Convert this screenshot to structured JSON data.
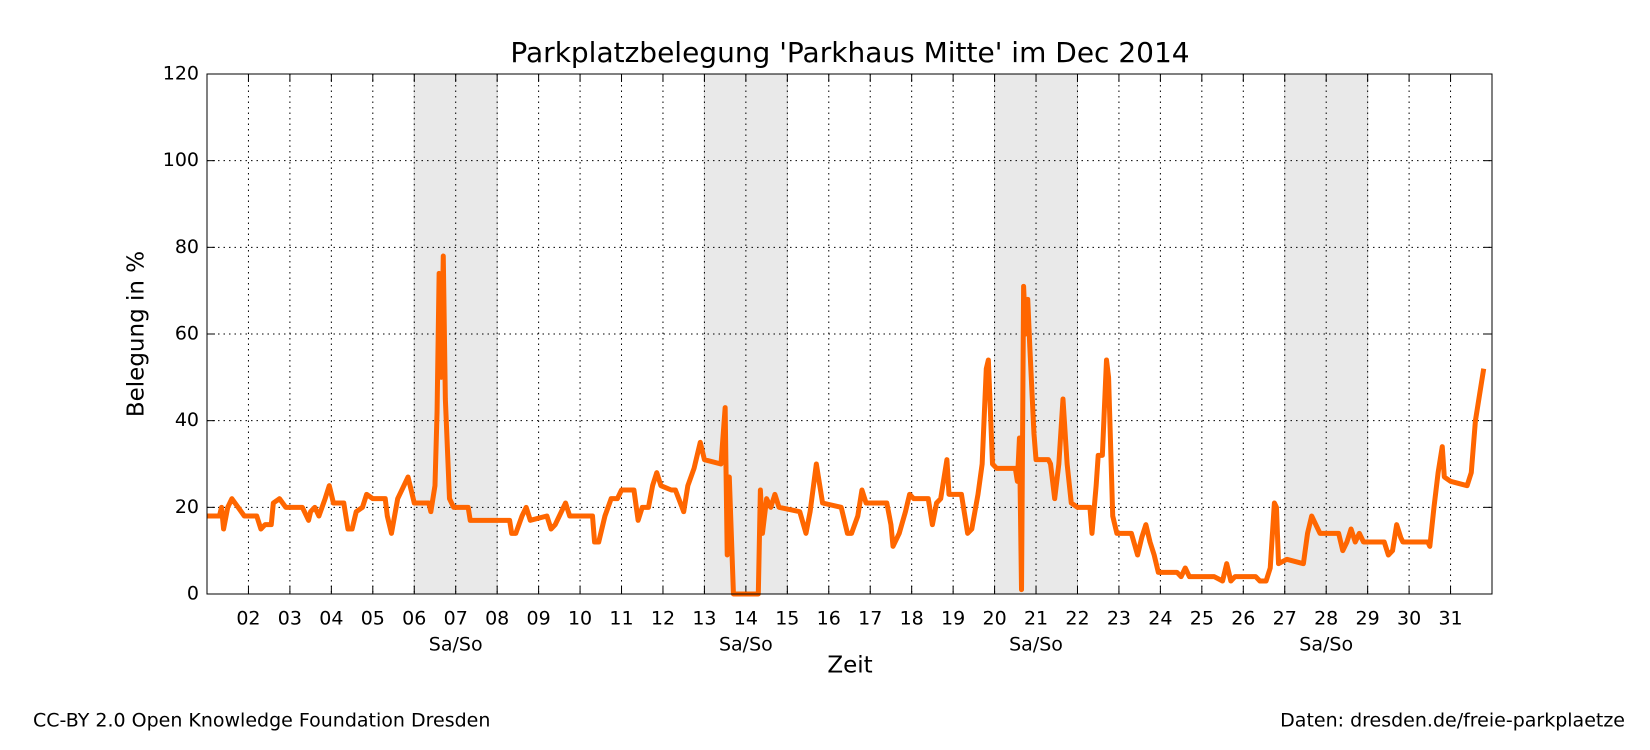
{
  "chart_data": {
    "type": "line",
    "title": "Parkplatzbelegung 'Parkhaus Mitte' im Dec 2014",
    "xlabel": "Zeit",
    "ylabel": "Belegung in %",
    "x": [
      1.0,
      1.3,
      1.35,
      1.4,
      1.5,
      1.6,
      1.75,
      1.9,
      2.2,
      2.3,
      2.4,
      2.55,
      2.6,
      2.75,
      2.9,
      3.3,
      3.45,
      3.5,
      3.6,
      3.7,
      3.85,
      3.95,
      4.05,
      4.3,
      4.4,
      4.5,
      4.6,
      4.75,
      4.85,
      5.0,
      5.3,
      5.35,
      5.45,
      5.6,
      5.75,
      5.85,
      6.0,
      6.35,
      6.4,
      6.5,
      6.55,
      6.6,
      6.65,
      6.7,
      6.75,
      6.85,
      6.95,
      7.3,
      7.35,
      8.3,
      8.35,
      8.45,
      8.6,
      8.7,
      8.8,
      9.2,
      9.3,
      9.4,
      9.5,
      9.65,
      9.75,
      10.3,
      10.35,
      10.45,
      10.6,
      10.75,
      10.9,
      11.0,
      11.3,
      11.4,
      11.5,
      11.65,
      11.75,
      11.85,
      11.95,
      12.2,
      12.3,
      12.5,
      12.6,
      12.75,
      12.85,
      12.9,
      13.0,
      13.4,
      13.5,
      13.55,
      13.6,
      13.7,
      14.3,
      14.35,
      14.4,
      14.5,
      14.6,
      14.7,
      14.8,
      15.3,
      15.45,
      15.55,
      15.7,
      15.85,
      16.3,
      16.45,
      16.55,
      16.7,
      16.8,
      16.9,
      17.4,
      17.5,
      17.55,
      17.7,
      17.85,
      17.95,
      18.05,
      18.4,
      18.5,
      18.6,
      18.7,
      18.8,
      18.85,
      18.9,
      19.2,
      19.35,
      19.45,
      19.6,
      19.7,
      19.8,
      19.85,
      19.95,
      20.05,
      20.5,
      20.55,
      20.6,
      20.65,
      20.7,
      20.75,
      20.8,
      20.85,
      20.95,
      21.0,
      21.3,
      21.35,
      21.45,
      21.55,
      21.65,
      21.75,
      21.85,
      22.0,
      22.3,
      22.35,
      22.45,
      22.5,
      22.6,
      22.7,
      22.75,
      22.85,
      22.95,
      23.3,
      23.45,
      23.55,
      23.65,
      23.75,
      23.85,
      23.95,
      24.4,
      24.5,
      24.6,
      24.7,
      25.3,
      25.5,
      25.6,
      25.7,
      25.8,
      26.3,
      26.4,
      26.55,
      26.65,
      26.75,
      26.8,
      26.85,
      27.05,
      27.45,
      27.55,
      27.65,
      27.75,
      27.85,
      28.3,
      28.4,
      28.5,
      28.6,
      28.7,
      28.8,
      28.9,
      29.4,
      29.5,
      29.6,
      29.7,
      29.8,
      29.85,
      30.45,
      30.5,
      30.6,
      30.7,
      30.8,
      30.85,
      31.0,
      31.4,
      31.5,
      31.6,
      31.7,
      31.8
    ],
    "series": [
      {
        "color": "#ff6600",
        "values": [
          18,
          18,
          20,
          15,
          20,
          22,
          20,
          18,
          18,
          15,
          16,
          16,
          21,
          22,
          20,
          20,
          17,
          19,
          20,
          18,
          22,
          25,
          21,
          21,
          15,
          15,
          19,
          20,
          23,
          22,
          22,
          18,
          14,
          22,
          25,
          27,
          21,
          21,
          19,
          25,
          42,
          74,
          50,
          78,
          45,
          22,
          20,
          20,
          17,
          17,
          14,
          14,
          18,
          20,
          17,
          18,
          15,
          16,
          18,
          21,
          18,
          18,
          12,
          12,
          18,
          22,
          22,
          24,
          24,
          17,
          20,
          20,
          25,
          28,
          25,
          24,
          24,
          19,
          25,
          29,
          33,
          35,
          31,
          30,
          43,
          9,
          27,
          0,
          0,
          24,
          14,
          22,
          20,
          23,
          20,
          19,
          14,
          19,
          30,
          21,
          20,
          14,
          14,
          18,
          24,
          21,
          21,
          16,
          11,
          14,
          19,
          23,
          22,
          22,
          16,
          21,
          22,
          28,
          31,
          23,
          23,
          14,
          15,
          23,
          30,
          52,
          54,
          30,
          29,
          29,
          26,
          36,
          1,
          71,
          60,
          68,
          57,
          37,
          31,
          31,
          30,
          22,
          30,
          45,
          30,
          21,
          20,
          20,
          14,
          25,
          32,
          32,
          54,
          50,
          18,
          14,
          14,
          9,
          13,
          16,
          12,
          9,
          5,
          5,
          4,
          6,
          4,
          4,
          3,
          7,
          3,
          4,
          4,
          3,
          3,
          6,
          21,
          20,
          7,
          8,
          7,
          14,
          18,
          16,
          14,
          14,
          10,
          12,
          15,
          12,
          14,
          12,
          12,
          9,
          10,
          16,
          13,
          12,
          12,
          11,
          20,
          28,
          34,
          27,
          26,
          25,
          28,
          40,
          46,
          52
        ]
      }
    ],
    "xlim": [
      1,
      32
    ],
    "xticks": [
      {
        "value": 2,
        "label": "02"
      },
      {
        "value": 3,
        "label": "03"
      },
      {
        "value": 4,
        "label": "04"
      },
      {
        "value": 5,
        "label": "05"
      },
      {
        "value": 6,
        "label": "06"
      },
      {
        "value": 7,
        "label": "07"
      },
      {
        "value": 8,
        "label": "08"
      },
      {
        "value": 9,
        "label": "09"
      },
      10,
      11,
      12,
      13,
      14,
      15,
      16,
      17,
      18,
      19,
      20,
      21,
      22,
      23,
      24,
      25,
      26,
      27,
      28,
      29,
      30,
      31
    ],
    "ylim": [
      0,
      120
    ],
    "yticks": [
      0,
      20,
      40,
      60,
      80,
      100,
      120
    ],
    "grid": true,
    "weekends": [
      {
        "start": 6,
        "end": 8,
        "label": "Sa/So"
      },
      {
        "start": 13,
        "end": 15,
        "label": "Sa/So"
      },
      {
        "start": 20,
        "end": 22,
        "label": "Sa/So"
      },
      {
        "start": 27,
        "end": 29,
        "label": "Sa/So"
      }
    ]
  },
  "footer": {
    "left": "CC-BY 2.0 Open Knowledge Foundation Dresden",
    "right": "Daten: dresden.de/freie-parkplaetze"
  }
}
